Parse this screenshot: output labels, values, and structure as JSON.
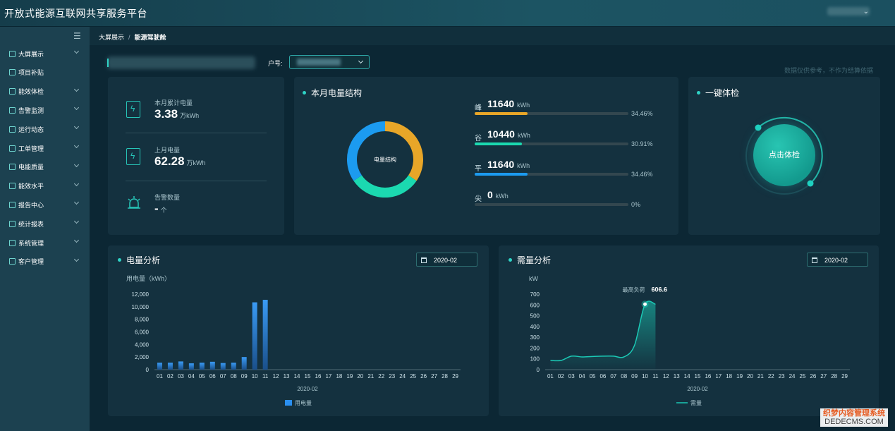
{
  "header": {
    "app_title": "开放式能源互联网共享服务平台",
    "user_name": ""
  },
  "sidebar": {
    "items": [
      {
        "label": "大屏展示",
        "icon": "monitor-icon",
        "expandable": true
      },
      {
        "label": "项目补贴",
        "icon": "screen-icon",
        "expandable": false
      },
      {
        "label": "能效体检",
        "icon": "grid-icon",
        "expandable": true
      },
      {
        "label": "告警监测",
        "icon": "alarm-icon",
        "expandable": true
      },
      {
        "label": "运行动态",
        "icon": "chart-icon",
        "expandable": true
      },
      {
        "label": "工单管理",
        "icon": "list-icon",
        "expandable": true
      },
      {
        "label": "电能质量",
        "icon": "quality-icon",
        "expandable": true
      },
      {
        "label": "能效水平",
        "icon": "level-icon",
        "expandable": true
      },
      {
        "label": "报告中心",
        "icon": "report-icon",
        "expandable": true
      },
      {
        "label": "统计报表",
        "icon": "table-icon",
        "expandable": true
      },
      {
        "label": "系统管理",
        "icon": "system-icon",
        "expandable": true
      },
      {
        "label": "客户管理",
        "icon": "customer-icon",
        "expandable": true
      }
    ]
  },
  "breadcrumb": {
    "root": "大屏展示",
    "separator": "/",
    "current": "能源驾驶舱"
  },
  "toolbar": {
    "account_label": "户号:",
    "account_value": "",
    "disclaimer": "数据仅供参考，不作为结算依据"
  },
  "stats": [
    {
      "label": "本月累计电量",
      "value": "3.38",
      "unit": "万kWh",
      "icon": "electric-meter-icon"
    },
    {
      "label": "上月电量",
      "value": "62.28",
      "unit": "万kWh",
      "icon": "electric-meter-icon"
    },
    {
      "label": "告警数量",
      "value": "-",
      "unit": "个",
      "icon": "alarm-bell-icon"
    }
  ],
  "structure": {
    "title": "本月电量结构",
    "donut_label": "电量结构",
    "rows": [
      {
        "name": "峰",
        "value": "11640",
        "unit": "kWh",
        "percent": "34.46%",
        "fraction": 0.3446,
        "color": "#e8a628"
      },
      {
        "name": "谷",
        "value": "10440",
        "unit": "kWh",
        "percent": "30.91%",
        "fraction": 0.3091,
        "color": "#1bd9b0"
      },
      {
        "name": "平",
        "value": "11640",
        "unit": "kWh",
        "percent": "34.46%",
        "fraction": 0.3446,
        "color": "#1c9bf0"
      },
      {
        "name": "尖",
        "value": "0",
        "unit": "kWh",
        "percent": "0%",
        "fraction": 0,
        "color": "#e5483b"
      }
    ]
  },
  "checkup": {
    "title": "一键体检",
    "button_label": "点击体检"
  },
  "energy": {
    "title": "电量分析",
    "date": "2020-02"
  },
  "demand": {
    "title": "需量分析",
    "date": "2020-02"
  },
  "chart_data": [
    {
      "type": "bar",
      "ylabel": "用电量（kWh）",
      "xlabel": "2020-02",
      "ylim": [
        0,
        12000
      ],
      "yticks": [
        "0",
        "2,000",
        "4,000",
        "6,000",
        "8,000",
        "10,000",
        "12,000"
      ],
      "categories": [
        "01",
        "02",
        "03",
        "04",
        "05",
        "06",
        "07",
        "08",
        "09",
        "10",
        "11",
        "12",
        "13",
        "14",
        "15",
        "16",
        "17",
        "18",
        "19",
        "20",
        "21",
        "22",
        "23",
        "24",
        "25",
        "26",
        "27",
        "28",
        "29"
      ],
      "series": [
        {
          "name": "用电量",
          "color": "#2a8ff0",
          "values": [
            1100,
            1100,
            1300,
            1000,
            1100,
            1250,
            1050,
            1100,
            2000,
            10700,
            11100,
            null,
            null,
            null,
            null,
            null,
            null,
            null,
            null,
            null,
            null,
            null,
            null,
            null,
            null,
            null,
            null,
            null,
            null
          ]
        }
      ],
      "legend": "bottom-center"
    },
    {
      "type": "area",
      "ylabel": "kW",
      "xlabel": "2020-02",
      "ylim": [
        0,
        700
      ],
      "yticks": [
        "0",
        "100",
        "200",
        "300",
        "400",
        "500",
        "600",
        "700"
      ],
      "categories": [
        "01",
        "02",
        "03",
        "04",
        "05",
        "06",
        "07",
        "08",
        "09",
        "10",
        "11",
        "12",
        "13",
        "14",
        "15",
        "16",
        "17",
        "18",
        "19",
        "20",
        "21",
        "22",
        "23",
        "24",
        "25",
        "26",
        "27",
        "28",
        "29"
      ],
      "series": [
        {
          "name": "需量",
          "color": "#1bc9b5",
          "values": [
            85,
            85,
            125,
            118,
            122,
            125,
            125,
            118,
            225,
            606.6,
            606.6,
            null,
            null,
            null,
            null,
            null,
            null,
            null,
            null,
            null,
            null,
            null,
            null,
            null,
            null,
            null,
            null,
            null,
            null
          ]
        }
      ],
      "peak_label": "最高负荷",
      "peak_value": "606.6",
      "legend": "bottom-center"
    }
  ],
  "watermark": {
    "line1": "织梦内容管理系统",
    "line2": "DEDECMS.COM"
  }
}
